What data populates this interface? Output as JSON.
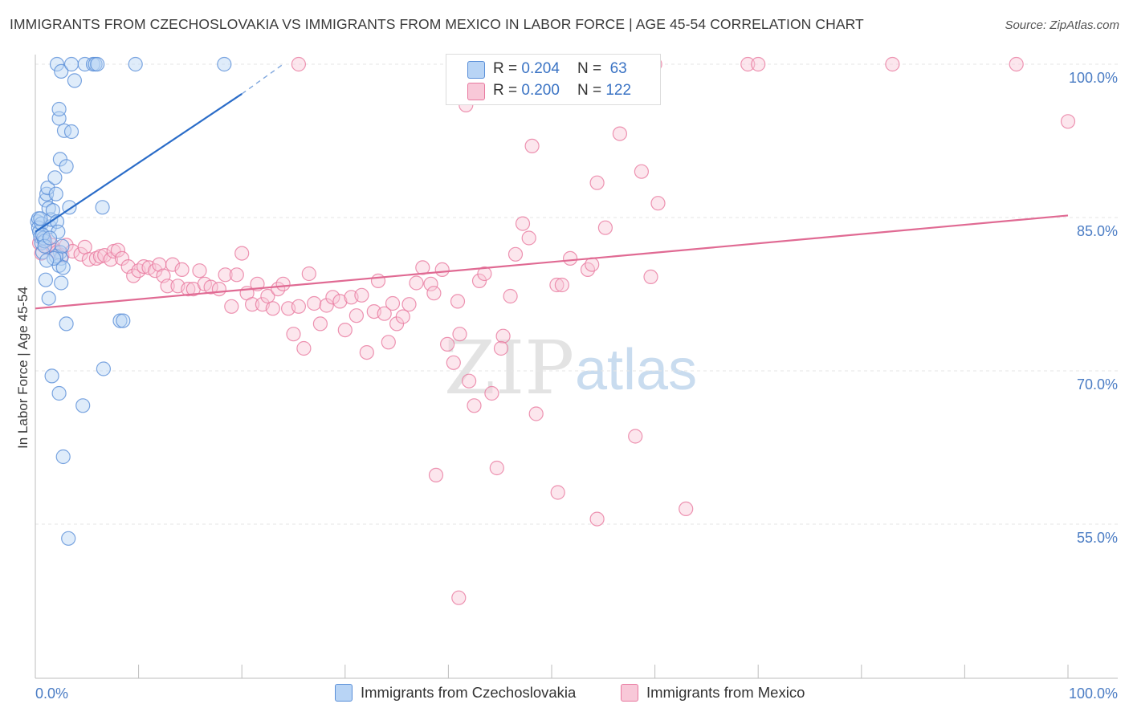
{
  "title": "IMMIGRANTS FROM CZECHOSLOVAKIA VS IMMIGRANTS FROM MEXICO IN LABOR FORCE | AGE 45-54 CORRELATION CHART",
  "source": "Source: ZipAtlas.com",
  "watermark": {
    "part1": "ZIP",
    "part2": "atlas"
  },
  "legend": {
    "r_label": "R =",
    "n_label": "N =",
    "rows": [
      {
        "r": "0.204",
        "n": "63"
      },
      {
        "r": "0.200",
        "n": "122"
      }
    ]
  },
  "colors": {
    "series1_fill": "#b8d4f5",
    "series1_stroke": "#5a8fd8",
    "series1_line": "#2a6cc8",
    "series2_fill": "#f8c8d8",
    "series2_stroke": "#e8799f",
    "series2_line": "#e06a93",
    "tick_text": "#4a7cc4",
    "grid": "#e6e6e6"
  },
  "chart_data": {
    "type": "scatter",
    "title": "IMMIGRANTS FROM CZECHOSLOVAKIA VS IMMIGRANTS FROM MEXICO IN LABOR FORCE | AGE 45-54 CORRELATION CHART",
    "xlabel": "",
    "ylabel": "In Labor Force | Age 45-54",
    "xlim": [
      0,
      100
    ],
    "ylim": [
      40,
      101
    ],
    "x_tick_labels": [
      "0.0%",
      "100.0%"
    ],
    "y_ticks": [
      55,
      70,
      85,
      100
    ],
    "y_tick_labels": [
      "55.0%",
      "70.0%",
      "85.0%",
      "100.0%"
    ],
    "grid": "horizontal dashed",
    "legend_position": "top-center",
    "series": [
      {
        "name": "Immigrants from Czechoslovakia",
        "r": 0.204,
        "n": 63,
        "trend": {
          "x0": 0,
          "y0": 83.6,
          "x1": 20,
          "y1": 97.1,
          "dash_to_x": 24,
          "dash_to_y": 100
        },
        "points": [
          [
            0.2,
            84.6
          ],
          [
            0.3,
            84.9
          ],
          [
            0.3,
            84.0
          ],
          [
            0.4,
            83.6
          ],
          [
            0.5,
            83.1
          ],
          [
            0.6,
            84.4
          ],
          [
            0.6,
            82.5
          ],
          [
            0.7,
            81.6
          ],
          [
            0.8,
            83.0
          ],
          [
            0.9,
            82.7
          ],
          [
            1.0,
            86.7
          ],
          [
            1.1,
            87.3
          ],
          [
            1.2,
            87.9
          ],
          [
            1.3,
            85.9
          ],
          [
            1.4,
            84.1
          ],
          [
            1.5,
            84.8
          ],
          [
            1.7,
            85.7
          ],
          [
            1.9,
            88.9
          ],
          [
            2.0,
            87.3
          ],
          [
            2.1,
            84.6
          ],
          [
            2.2,
            83.6
          ],
          [
            2.4,
            81.6
          ],
          [
            2.5,
            81.0
          ],
          [
            2.3,
            80.3
          ],
          [
            2.0,
            81.2
          ],
          [
            1.0,
            78.9
          ],
          [
            1.3,
            77.1
          ],
          [
            2.5,
            78.6
          ],
          [
            2.7,
            80.1
          ],
          [
            3.3,
            86.0
          ],
          [
            2.3,
            94.7
          ],
          [
            2.3,
            95.6
          ],
          [
            2.4,
            90.7
          ],
          [
            2.8,
            93.5
          ],
          [
            3.0,
            90.0
          ],
          [
            3.5,
            93.4
          ],
          [
            2.1,
            100.0
          ],
          [
            2.5,
            99.3
          ],
          [
            3.5,
            100.0
          ],
          [
            3.8,
            98.4
          ],
          [
            4.8,
            100.0
          ],
          [
            5.6,
            100.0
          ],
          [
            5.8,
            100.0
          ],
          [
            6.0,
            100.0
          ],
          [
            9.7,
            100.0
          ],
          [
            18.3,
            100.0
          ],
          [
            6.5,
            86.0
          ],
          [
            8.2,
            74.9
          ],
          [
            8.5,
            74.9
          ],
          [
            3.0,
            74.6
          ],
          [
            1.6,
            69.5
          ],
          [
            2.3,
            67.8
          ],
          [
            4.6,
            66.6
          ],
          [
            6.6,
            70.2
          ],
          [
            2.7,
            61.6
          ],
          [
            3.2,
            53.6
          ],
          [
            0.5,
            84.9
          ],
          [
            0.7,
            83.3
          ],
          [
            0.9,
            82.2
          ],
          [
            1.4,
            83.0
          ],
          [
            1.8,
            81.0
          ],
          [
            2.6,
            82.2
          ],
          [
            1.1,
            80.8
          ]
        ]
      },
      {
        "name": "Immigrants from Mexico",
        "r": 0.2,
        "n": 122,
        "trend": {
          "x0": 0,
          "y0": 76.1,
          "x1": 100,
          "y1": 85.2
        },
        "points": [
          [
            0.4,
            82.5
          ],
          [
            0.6,
            81.5
          ],
          [
            0.9,
            82.9
          ],
          [
            1.2,
            82.1
          ],
          [
            1.6,
            82.3
          ],
          [
            1.8,
            81.8
          ],
          [
            2.1,
            81.6
          ],
          [
            2.6,
            81.3
          ],
          [
            3.0,
            82.3
          ],
          [
            3.6,
            81.7
          ],
          [
            4.4,
            81.4
          ],
          [
            4.8,
            82.1
          ],
          [
            5.2,
            80.9
          ],
          [
            5.9,
            81.0
          ],
          [
            6.3,
            81.2
          ],
          [
            6.7,
            81.3
          ],
          [
            7.3,
            80.9
          ],
          [
            7.6,
            81.7
          ],
          [
            8.0,
            81.8
          ],
          [
            8.4,
            81.0
          ],
          [
            9.0,
            80.2
          ],
          [
            9.5,
            79.3
          ],
          [
            10.0,
            79.8
          ],
          [
            10.5,
            80.2
          ],
          [
            11.0,
            80.1
          ],
          [
            11.6,
            79.8
          ],
          [
            12.0,
            80.4
          ],
          [
            12.4,
            79.3
          ],
          [
            12.8,
            78.3
          ],
          [
            13.3,
            80.4
          ],
          [
            13.8,
            78.3
          ],
          [
            14.2,
            79.9
          ],
          [
            14.8,
            78.0
          ],
          [
            15.3,
            78.0
          ],
          [
            15.9,
            79.8
          ],
          [
            16.4,
            78.5
          ],
          [
            17.0,
            78.2
          ],
          [
            17.8,
            78.0
          ],
          [
            18.4,
            79.4
          ],
          [
            19.0,
            76.3
          ],
          [
            19.5,
            79.4
          ],
          [
            20.0,
            81.5
          ],
          [
            20.5,
            77.6
          ],
          [
            21.0,
            76.5
          ],
          [
            21.5,
            78.5
          ],
          [
            22.0,
            76.5
          ],
          [
            22.5,
            77.3
          ],
          [
            23.0,
            76.1
          ],
          [
            23.5,
            78.0
          ],
          [
            24.0,
            78.5
          ],
          [
            24.5,
            76.1
          ],
          [
            25.0,
            73.6
          ],
          [
            25.5,
            76.3
          ],
          [
            26.0,
            72.2
          ],
          [
            26.5,
            79.5
          ],
          [
            27.0,
            76.6
          ],
          [
            27.6,
            74.6
          ],
          [
            28.2,
            76.4
          ],
          [
            28.8,
            77.2
          ],
          [
            29.5,
            76.8
          ],
          [
            30.0,
            74.0
          ],
          [
            30.6,
            77.2
          ],
          [
            31.1,
            75.4
          ],
          [
            31.6,
            77.4
          ],
          [
            32.1,
            71.8
          ],
          [
            32.8,
            75.8
          ],
          [
            33.2,
            78.8
          ],
          [
            33.8,
            75.6
          ],
          [
            34.2,
            72.8
          ],
          [
            34.6,
            76.6
          ],
          [
            35.0,
            74.6
          ],
          [
            35.6,
            75.3
          ],
          [
            36.2,
            76.5
          ],
          [
            36.9,
            78.6
          ],
          [
            37.5,
            80.1
          ],
          [
            38.3,
            78.5
          ],
          [
            38.6,
            77.6
          ],
          [
            39.4,
            79.9
          ],
          [
            39.9,
            72.6
          ],
          [
            40.5,
            70.8
          ],
          [
            40.9,
            76.8
          ],
          [
            41.1,
            73.6
          ],
          [
            42.0,
            69.0
          ],
          [
            42.5,
            66.6
          ],
          [
            43.0,
            78.8
          ],
          [
            43.5,
            79.5
          ],
          [
            44.2,
            67.8
          ],
          [
            45.3,
            73.4
          ],
          [
            45.1,
            72.2
          ],
          [
            46.0,
            77.3
          ],
          [
            46.5,
            81.4
          ],
          [
            47.2,
            84.4
          ],
          [
            47.8,
            83.0
          ],
          [
            48.5,
            65.8
          ],
          [
            50.5,
            78.4
          ],
          [
            51.0,
            78.4
          ],
          [
            51.8,
            81.0
          ],
          [
            53.5,
            79.9
          ],
          [
            53.9,
            80.4
          ],
          [
            54.4,
            88.4
          ],
          [
            55.2,
            84.0
          ],
          [
            56.6,
            93.2
          ],
          [
            58.1,
            63.6
          ],
          [
            58.7,
            89.5
          ],
          [
            59.6,
            79.2
          ],
          [
            60.3,
            86.4
          ],
          [
            63.0,
            56.5
          ],
          [
            48.1,
            92.0
          ],
          [
            41.7,
            96.0
          ],
          [
            38.8,
            59.8
          ],
          [
            44.7,
            60.5
          ],
          [
            50.6,
            58.1
          ],
          [
            54.4,
            55.5
          ],
          [
            41.0,
            47.8
          ],
          [
            25.5,
            100.0
          ],
          [
            52.0,
            100.0
          ],
          [
            60.0,
            100.0
          ],
          [
            69.0,
            100.0
          ],
          [
            70.0,
            100.0
          ],
          [
            83.0,
            100.0
          ],
          [
            95.0,
            100.0
          ],
          [
            100.0,
            94.4
          ]
        ]
      }
    ]
  },
  "bottom_legend": [
    {
      "label": "Immigrants from Czechoslovakia"
    },
    {
      "label": "Immigrants from Mexico"
    }
  ]
}
